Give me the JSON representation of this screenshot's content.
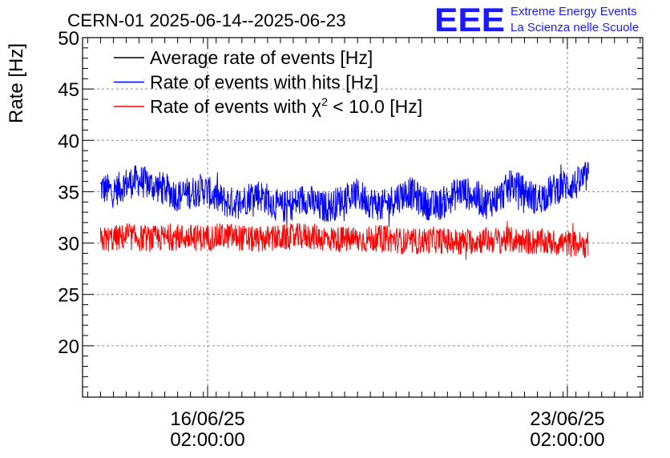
{
  "header": {
    "title": "CERN-01 2025-06-14--2025-06-23",
    "logo_mark": "EEE",
    "logo_line1": "Extreme Energy Events",
    "logo_line2": "La Scienza nelle Scuole"
  },
  "colors": {
    "average": "#000000",
    "hits": "#0000ff",
    "chi2": "#ff0000",
    "logo": "#1a1aff",
    "grid": "#8c8c8c"
  },
  "chart_data": {
    "type": "line",
    "title": "CERN-01 2025-06-14--2025-06-23",
    "xlabel": "",
    "ylabel": "Rate [Hz]",
    "x_units": "days since 2025-06-14 00:00",
    "xlim": [
      -0.35,
      10.55
    ],
    "ylim": [
      15,
      50
    ],
    "yticks": [
      20,
      25,
      30,
      35,
      40,
      45,
      50
    ],
    "xticks": [
      {
        "x": 2.0833,
        "line1": "16/06/25",
        "line2": "02:00:00"
      },
      {
        "x": 9.0833,
        "line1": "23/06/25",
        "line2": "02:00:00"
      }
    ],
    "grid": true,
    "legend_position": "top-left",
    "series": [
      {
        "name": "Average rate of events [Hz]",
        "legend_prefix": "Average rate of events [Hz]",
        "legend_sup": "",
        "legend_suffix": "",
        "color": "#000000",
        "x": [],
        "y": [],
        "spread": 0
      },
      {
        "name": "Rate of events with hits [Hz]",
        "legend_prefix": "Rate of events with hits [Hz]",
        "legend_sup": "",
        "legend_suffix": "",
        "color": "#0000ff",
        "x": [
          0.0,
          0.25,
          0.5,
          0.75,
          1.0,
          1.25,
          1.5,
          1.75,
          2.0,
          2.25,
          2.5,
          2.75,
          3.0,
          3.25,
          3.5,
          3.75,
          4.0,
          4.25,
          4.5,
          4.75,
          5.0,
          5.25,
          5.5,
          5.75,
          6.0,
          6.25,
          6.5,
          6.75,
          7.0,
          7.25,
          7.5,
          7.75,
          8.0,
          8.25,
          8.5,
          8.75,
          9.0,
          9.25,
          9.5
        ],
        "y": [
          35.4,
          35.0,
          35.8,
          36.1,
          35.6,
          35.3,
          34.6,
          34.9,
          35.3,
          34.4,
          33.9,
          34.0,
          34.9,
          34.3,
          33.4,
          33.8,
          34.4,
          33.5,
          33.6,
          34.4,
          34.7,
          34.0,
          33.6,
          34.4,
          35.0,
          34.1,
          33.5,
          34.2,
          35.1,
          34.6,
          33.9,
          34.4,
          35.7,
          35.0,
          34.2,
          35.0,
          35.6,
          35.7,
          36.6
        ],
        "spread": 1.6
      },
      {
        "name": "Rate of events with χ2 < 10.0 [Hz]",
        "legend_prefix": "Rate of events with χ",
        "legend_sup": "2",
        "legend_suffix": " < 10.0 [Hz]",
        "color": "#ff0000",
        "x": [
          0.0,
          0.5,
          1.0,
          1.5,
          2.0,
          2.5,
          3.0,
          3.5,
          4.0,
          4.5,
          5.0,
          5.5,
          6.0,
          6.5,
          7.0,
          7.5,
          8.0,
          8.5,
          9.0,
          9.5
        ],
        "y": [
          30.3,
          30.6,
          30.4,
          30.6,
          30.5,
          30.7,
          30.3,
          30.5,
          30.7,
          30.4,
          30.3,
          30.5,
          30.1,
          30.3,
          30.1,
          30.3,
          30.3,
          30.1,
          30.0,
          29.8
        ],
        "spread": 1.3
      }
    ]
  }
}
